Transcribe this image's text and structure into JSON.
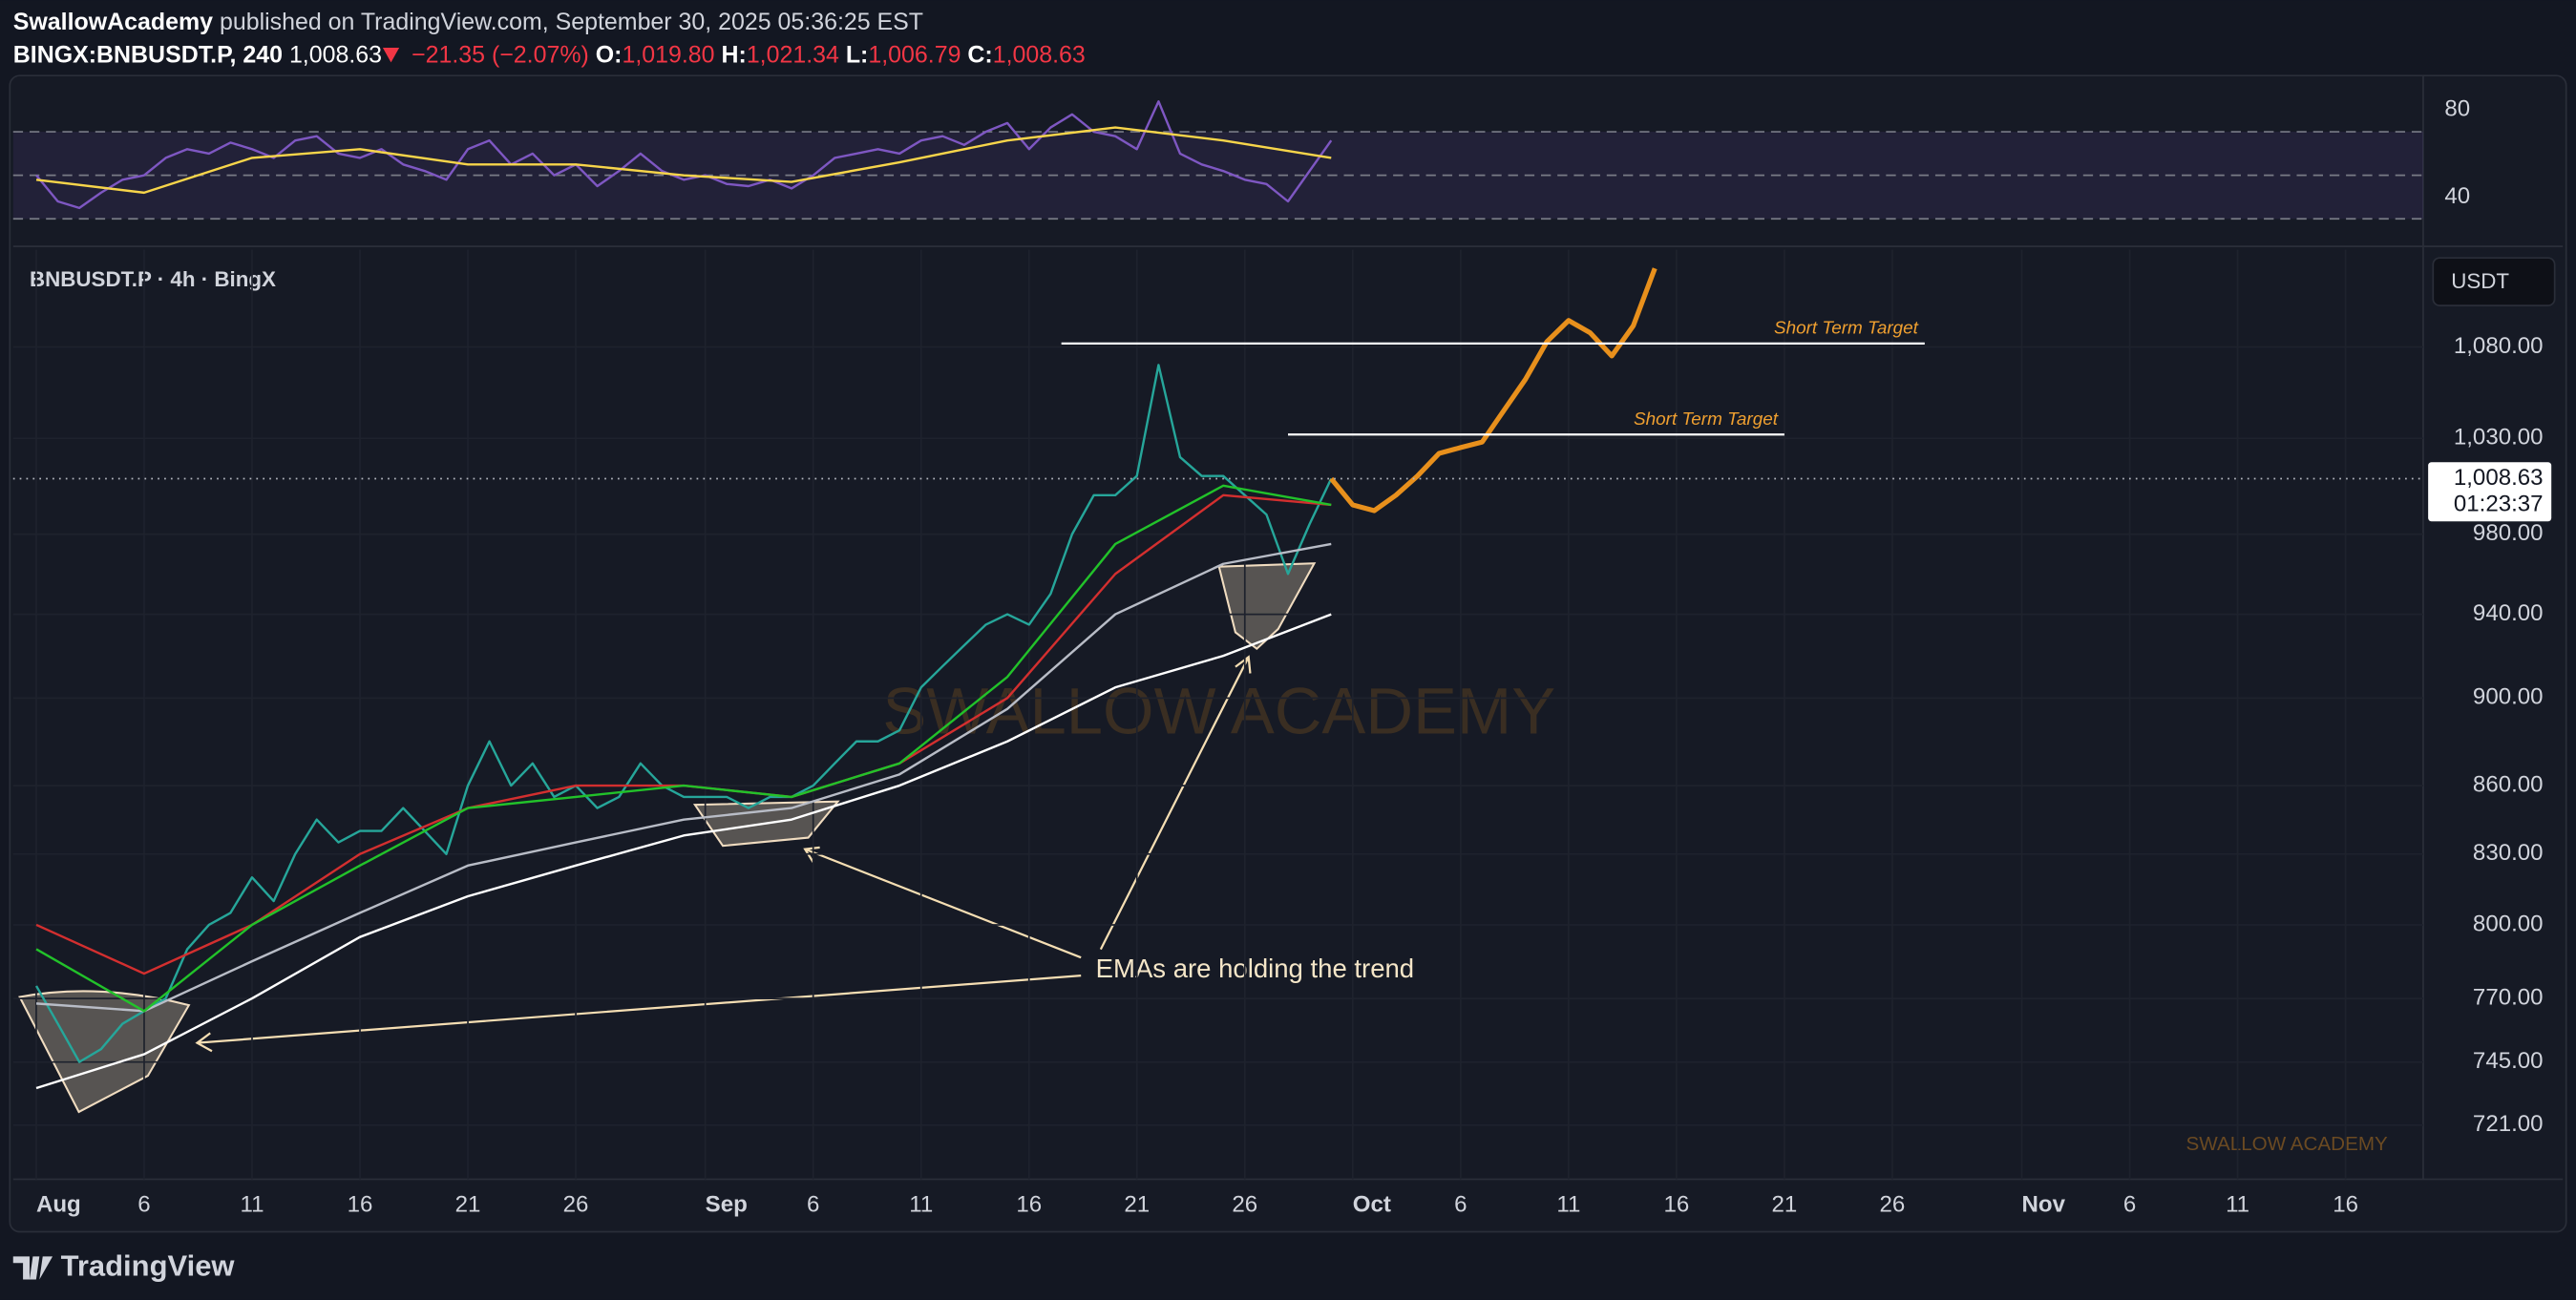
{
  "header": {
    "publisher": "SwallowAcademy",
    "published": "published on TradingView.com, September 30, 2025 05:36:25 EST",
    "symbol": "BINGX:BNBUSDT.P, 240",
    "last": "1,008.63",
    "change": "−21.35 (−2.07%)",
    "open_label": "O:",
    "open": "1,019.80",
    "high_label": "H:",
    "high": "1,021.34",
    "low_label": "L:",
    "low": "1,006.79",
    "close_label": "C:",
    "close": "1,008.63"
  },
  "footer": {
    "brand": "TradingView"
  },
  "chart_data": [
    {
      "type": "line",
      "title": "BNBUSDT.P · 4h · BingX",
      "log_scale": true,
      "grid": true,
      "xlim": [
        -1.07,
        110.6
      ],
      "ylim": [
        701,
        1136
      ],
      "xticks": [
        {
          "value": 0,
          "label": "Aug"
        },
        {
          "value": 5,
          "label": "6"
        },
        {
          "value": 10,
          "label": "11"
        },
        {
          "value": 15,
          "label": "16"
        },
        {
          "value": 20,
          "label": "21"
        },
        {
          "value": 25,
          "label": "26"
        },
        {
          "value": 31,
          "label": "Sep"
        },
        {
          "value": 36,
          "label": "6"
        },
        {
          "value": 41,
          "label": "11"
        },
        {
          "value": 46,
          "label": "16"
        },
        {
          "value": 51,
          "label": "21"
        },
        {
          "value": 56,
          "label": "26"
        },
        {
          "value": 61,
          "label": "Oct"
        },
        {
          "value": 66,
          "label": "6"
        },
        {
          "value": 71,
          "label": "11"
        },
        {
          "value": 76,
          "label": "16"
        },
        {
          "value": 81,
          "label": "21"
        },
        {
          "value": 86,
          "label": "26"
        },
        {
          "value": 92,
          "label": "Nov"
        },
        {
          "value": 97,
          "label": "6"
        },
        {
          "value": 102,
          "label": "11"
        },
        {
          "value": 107,
          "label": "16"
        }
      ],
      "yticks": [
        {
          "value": 721,
          "label": "721.00"
        },
        {
          "value": 745,
          "label": "745.00"
        },
        {
          "value": 770,
          "label": "770.00"
        },
        {
          "value": 800,
          "label": "800.00"
        },
        {
          "value": 830,
          "label": "830.00"
        },
        {
          "value": 860,
          "label": "860.00"
        },
        {
          "value": 900,
          "label": "900.00"
        },
        {
          "value": 940,
          "label": "940.00"
        },
        {
          "value": 980,
          "label": "980.00"
        },
        {
          "value": 1030,
          "label": "1,030.00"
        },
        {
          "value": 1080,
          "label": "1,080.00"
        }
      ],
      "series": [
        {
          "color": "#26a69a",
          "x": [
            0,
            1,
            2,
            3,
            4,
            5,
            6,
            7,
            8,
            9,
            10,
            11,
            12,
            13,
            14,
            15,
            16,
            17,
            18,
            19,
            20,
            21,
            22,
            23,
            24,
            25,
            26,
            27,
            28,
            29,
            30,
            31,
            32,
            33,
            34,
            35,
            36,
            37,
            38,
            39,
            40,
            41,
            42,
            43,
            44,
            45,
            46,
            47,
            48,
            49,
            50,
            51,
            52,
            53,
            54,
            55,
            56,
            57,
            58,
            59,
            60
          ],
          "values": [
            775,
            760,
            745,
            750,
            760,
            765,
            770,
            790,
            800,
            805,
            820,
            810,
            830,
            845,
            835,
            840,
            840,
            850,
            840,
            830,
            860,
            880,
            860,
            870,
            855,
            860,
            850,
            855,
            870,
            860,
            855,
            855,
            855,
            850,
            855,
            855,
            860,
            870,
            880,
            880,
            885,
            905,
            915,
            925,
            935,
            940,
            935,
            950,
            980,
            1000,
            1000,
            1010,
            1070,
            1020,
            1010,
            1010,
            1000,
            990,
            960,
            985,
            1008.63
          ]
        },
        {
          "color": "#e8901c",
          "x": [
            60,
            61,
            62,
            63,
            64,
            65,
            66,
            67,
            68,
            69,
            70,
            71,
            72,
            73,
            74,
            75
          ],
          "values": [
            1008.63,
            995,
            992,
            1000,
            1010,
            1022,
            1025,
            1028,
            1045,
            1062,
            1083,
            1095,
            1088,
            1075,
            1092,
            1125
          ]
        },
        {
          "color": "#ffffff",
          "x": [
            0,
            5,
            10,
            15,
            20,
            25,
            30,
            35,
            40,
            45,
            50,
            55,
            60
          ],
          "values": [
            735,
            748,
            770,
            795,
            812,
            825,
            838,
            845,
            860,
            880,
            905,
            920,
            940
          ]
        },
        {
          "color": "#b8bcc6",
          "x": [
            0,
            5,
            10,
            15,
            20,
            25,
            30,
            35,
            40,
            45,
            50,
            55,
            60
          ],
          "values": [
            768,
            765,
            785,
            805,
            825,
            835,
            845,
            850,
            865,
            895,
            940,
            965,
            975
          ]
        },
        {
          "color": "#d32f2f",
          "x": [
            0,
            5,
            10,
            15,
            20,
            25,
            30,
            35,
            40,
            45,
            50,
            55,
            60
          ],
          "values": [
            800,
            780,
            800,
            830,
            850,
            860,
            860,
            855,
            870,
            900,
            960,
            1000,
            995
          ]
        },
        {
          "color": "#22c22a",
          "x": [
            0,
            5,
            10,
            15,
            20,
            25,
            30,
            35,
            40,
            45,
            50,
            55,
            60
          ],
          "values": [
            790,
            765,
            800,
            825,
            850,
            855,
            860,
            855,
            870,
            910,
            975,
            1005,
            995
          ]
        }
      ],
      "levels": [
        {
          "label": "Short Term Target",
          "value": 1082,
          "x": [
            47.5,
            87.5
          ]
        },
        {
          "label": "Short Term Target",
          "value": 1032,
          "x": [
            58,
            81
          ]
        }
      ],
      "last_price": {
        "value": 1008.63,
        "label": "1,008.63"
      },
      "countdown": "01:23:37",
      "currency": "USDT",
      "annotation": "EMAs are holding the trend",
      "watermark": "SWALLOW ACADEMY"
    },
    {
      "type": "line",
      "log_scale": false,
      "grid": false,
      "xlim": [
        -1.07,
        110.6
      ],
      "ylim": [
        19.6,
        92.8
      ],
      "yticks": [
        40,
        80
      ],
      "hlines": [
        70,
        50,
        30
      ],
      "series": [
        {
          "color": "#7e57c2",
          "x": [
            0,
            1,
            2,
            3,
            4,
            5,
            6,
            7,
            8,
            9,
            10,
            11,
            12,
            13,
            14,
            15,
            16,
            17,
            18,
            19,
            20,
            21,
            22,
            23,
            24,
            25,
            26,
            27,
            28,
            29,
            30,
            31,
            32,
            33,
            34,
            35,
            36,
            37,
            38,
            39,
            40,
            41,
            42,
            43,
            44,
            45,
            46,
            47,
            48,
            49,
            50,
            51,
            52,
            53,
            54,
            55,
            56,
            57,
            58,
            59,
            60
          ],
          "values": [
            50,
            38,
            35,
            42,
            48,
            50,
            58,
            62,
            60,
            65,
            62,
            58,
            66,
            68,
            60,
            58,
            62,
            55,
            52,
            48,
            62,
            66,
            55,
            60,
            50,
            55,
            45,
            52,
            60,
            52,
            48,
            50,
            46,
            45,
            48,
            44,
            50,
            58,
            60,
            62,
            60,
            66,
            68,
            64,
            70,
            74,
            62,
            72,
            78,
            70,
            68,
            62,
            84,
            60,
            55,
            52,
            48,
            46,
            38,
            52,
            66
          ]
        },
        {
          "color": "#f7d54a",
          "x": [
            0,
            5,
            10,
            15,
            20,
            25,
            30,
            35,
            40,
            45,
            50,
            55,
            60
          ],
          "values": [
            48,
            42,
            58,
            62,
            55,
            55,
            50,
            47,
            56,
            66,
            72,
            66,
            58
          ]
        }
      ]
    }
  ]
}
